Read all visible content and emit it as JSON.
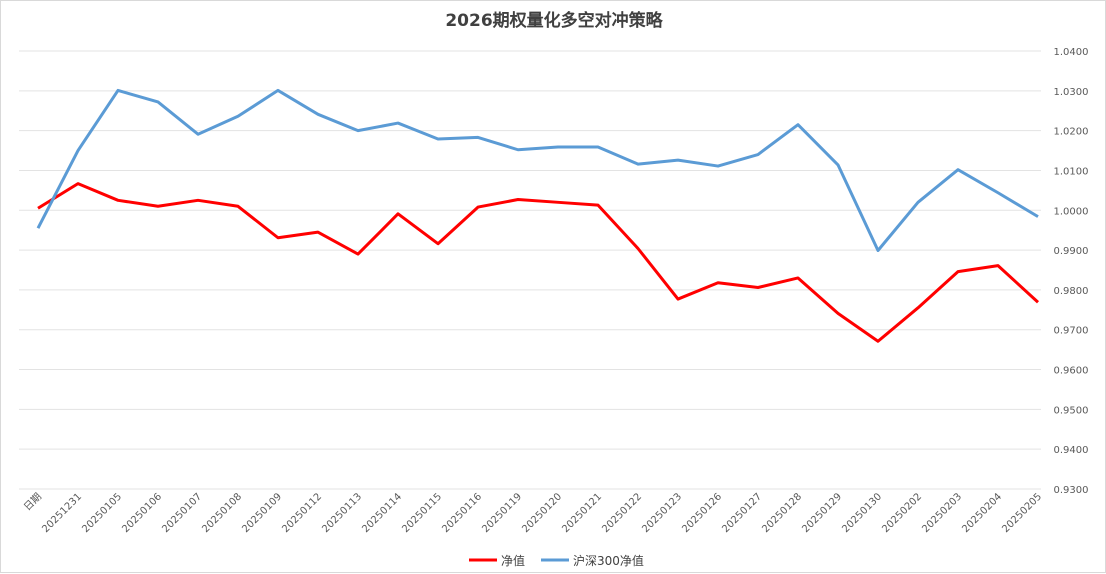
{
  "chart_data": {
    "type": "line",
    "title": "2026期权量化多空对冲策略",
    "categories": [
      "日期",
      "20251231",
      "20250105",
      "20250106",
      "20250107",
      "20250108",
      "20250109",
      "20250112",
      "20250113",
      "20250114",
      "20250115",
      "20250116",
      "20250119",
      "20250120",
      "20250121",
      "20250122",
      "20250123",
      "20250126",
      "20250127",
      "20250128",
      "20250129",
      "20250130",
      "20250202",
      "20250203",
      "20250204",
      "20250205"
    ],
    "series": [
      {
        "name": "净值",
        "color": "#ff0000",
        "values": [
          1.0005,
          1.0067,
          1.0025,
          1.001,
          1.0025,
          1.001,
          0.9931,
          0.9945,
          0.989,
          0.9991,
          0.9916,
          1.0008,
          1.0027,
          1.002,
          1.0013,
          0.9904,
          0.9777,
          0.9818,
          0.9806,
          0.983,
          0.9741,
          0.9671,
          0.9755,
          0.9846,
          0.9861,
          0.9769
        ]
      },
      {
        "name": "沪深300净值",
        "color": "#5b9bd5",
        "values": [
          0.9955,
          1.015,
          1.0301,
          1.0272,
          1.0191,
          1.0236,
          1.0301,
          1.0241,
          1.02,
          1.0219,
          1.0179,
          1.0183,
          1.0152,
          1.0159,
          1.0159,
          1.0116,
          1.0126,
          1.0111,
          1.014,
          1.0215,
          1.0114,
          0.9899,
          1.002,
          1.0102,
          1.0044,
          0.9984
        ]
      }
    ],
    "ylim": [
      0.93,
      1.04
    ],
    "yticks": [
      "0.9300",
      "0.9400",
      "0.9500",
      "0.9600",
      "0.9700",
      "0.9800",
      "0.9900",
      "1.0000",
      "1.0100",
      "1.0200",
      "1.0300",
      "1.0400"
    ],
    "y_axis_side": "right",
    "grid": true,
    "legend": "bottom"
  }
}
